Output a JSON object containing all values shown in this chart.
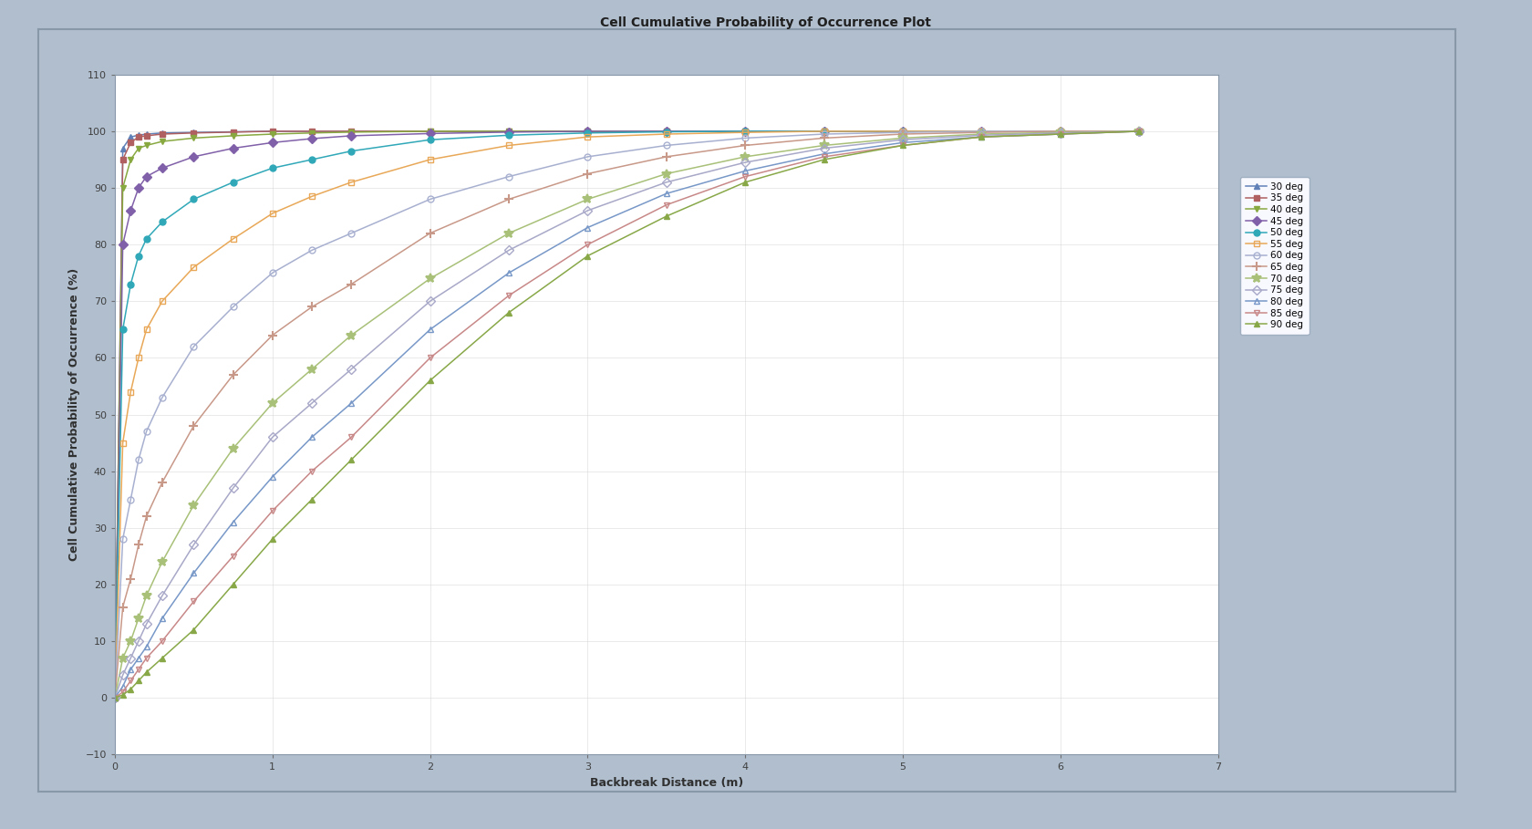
{
  "title": "Cell Cumulative Probability of Occurrence Plot",
  "xlabel": "Backbreak Distance (m)",
  "ylabel": "Cell Cumulative Probability of Occurrence (%)",
  "xlim": [
    0,
    7
  ],
  "ylim": [
    -10,
    110
  ],
  "xticks": [
    0,
    1,
    2,
    3,
    4,
    5,
    6,
    7
  ],
  "yticks": [
    -10,
    0,
    10,
    20,
    30,
    40,
    50,
    60,
    70,
    80,
    90,
    100,
    110
  ],
  "outer_bg": "#b0bece",
  "plot_bg": "#ffffff",
  "title_fontsize": 10,
  "series": [
    {
      "label": "30 deg",
      "color": "#6080b8",
      "marker": "^",
      "fillstyle": "full",
      "x": [
        0,
        0.05,
        0.1,
        0.15,
        0.2,
        0.3,
        0.5,
        0.75,
        1.0,
        1.25,
        1.5,
        2.0,
        2.5,
        3.0,
        3.5,
        4.0,
        4.5,
        5.0,
        5.5,
        6.0,
        6.5
      ],
      "y": [
        0,
        97,
        99,
        99.3,
        99.5,
        99.7,
        99.8,
        99.9,
        100,
        100,
        100,
        100,
        100,
        100,
        100,
        100,
        100,
        100,
        100,
        100,
        100
      ]
    },
    {
      "label": "35 deg",
      "color": "#b06060",
      "marker": "s",
      "fillstyle": "full",
      "x": [
        0,
        0.05,
        0.1,
        0.15,
        0.2,
        0.3,
        0.5,
        0.75,
        1.0,
        1.25,
        1.5,
        2.0,
        2.5,
        3.0,
        3.5,
        4.0,
        4.5,
        5.0,
        5.5,
        6.0,
        6.5
      ],
      "y": [
        0,
        95,
        98,
        99,
        99.2,
        99.5,
        99.7,
        99.85,
        100,
        100,
        100,
        100,
        100,
        100,
        100,
        100,
        100,
        100,
        100,
        100,
        100
      ]
    },
    {
      "label": "40 deg",
      "color": "#88a840",
      "marker": "v",
      "fillstyle": "full",
      "x": [
        0,
        0.05,
        0.1,
        0.15,
        0.2,
        0.3,
        0.5,
        0.75,
        1.0,
        1.25,
        1.5,
        2.0,
        2.5,
        3.0,
        3.5,
        4.0,
        4.5,
        5.0,
        5.5,
        6.0,
        6.5
      ],
      "y": [
        0,
        90,
        95,
        97,
        97.5,
        98.2,
        98.8,
        99.2,
        99.5,
        99.7,
        99.85,
        100,
        100,
        100,
        100,
        100,
        100,
        100,
        100,
        100,
        100
      ]
    },
    {
      "label": "45 deg",
      "color": "#8060a8",
      "marker": "D",
      "fillstyle": "full",
      "x": [
        0,
        0.05,
        0.1,
        0.15,
        0.2,
        0.3,
        0.5,
        0.75,
        1.0,
        1.25,
        1.5,
        2.0,
        2.5,
        3.0,
        3.5,
        4.0,
        4.5,
        5.0,
        5.5,
        6.0,
        6.5
      ],
      "y": [
        0,
        80,
        86,
        90,
        92,
        93.5,
        95.5,
        97,
        98,
        98.7,
        99.2,
        99.6,
        99.85,
        100,
        100,
        100,
        100,
        100,
        100,
        100,
        100
      ]
    },
    {
      "label": "50 deg",
      "color": "#30a8b8",
      "marker": "o",
      "fillstyle": "full",
      "x": [
        0,
        0.05,
        0.1,
        0.15,
        0.2,
        0.3,
        0.5,
        0.75,
        1.0,
        1.25,
        1.5,
        2.0,
        2.5,
        3.0,
        3.5,
        4.0,
        4.5,
        5.0,
        5.5,
        6.0,
        6.5
      ],
      "y": [
        0,
        65,
        73,
        78,
        81,
        84,
        88,
        91,
        93.5,
        95,
        96.5,
        98.5,
        99.3,
        99.7,
        99.9,
        100,
        100,
        100,
        100,
        100,
        100
      ]
    },
    {
      "label": "55 deg",
      "color": "#e8a858",
      "marker": "s",
      "fillstyle": "none",
      "x": [
        0,
        0.05,
        0.1,
        0.15,
        0.2,
        0.3,
        0.5,
        0.75,
        1.0,
        1.25,
        1.5,
        2.0,
        2.5,
        3.0,
        3.5,
        4.0,
        4.5,
        5.0,
        5.5,
        6.0,
        6.5
      ],
      "y": [
        0,
        45,
        54,
        60,
        65,
        70,
        76,
        81,
        85.5,
        88.5,
        91,
        95,
        97.5,
        99,
        99.5,
        99.8,
        100,
        100,
        100,
        100,
        100
      ]
    },
    {
      "label": "60 deg",
      "color": "#a8b0d0",
      "marker": "o",
      "fillstyle": "none",
      "x": [
        0,
        0.05,
        0.1,
        0.15,
        0.2,
        0.3,
        0.5,
        0.75,
        1.0,
        1.25,
        1.5,
        2.0,
        2.5,
        3.0,
        3.5,
        4.0,
        4.5,
        5.0,
        5.5,
        6.0,
        6.5
      ],
      "y": [
        0,
        28,
        35,
        42,
        47,
        53,
        62,
        69,
        75,
        79,
        82,
        88,
        92,
        95.5,
        97.5,
        98.8,
        99.5,
        99.8,
        100,
        100,
        100
      ]
    },
    {
      "label": "65 deg",
      "color": "#c89888",
      "marker": "+",
      "fillstyle": "full",
      "x": [
        0,
        0.05,
        0.1,
        0.15,
        0.2,
        0.3,
        0.5,
        0.75,
        1.0,
        1.25,
        1.5,
        2.0,
        2.5,
        3.0,
        3.5,
        4.0,
        4.5,
        5.0,
        5.5,
        6.0,
        6.5
      ],
      "y": [
        0,
        16,
        21,
        27,
        32,
        38,
        48,
        57,
        64,
        69,
        73,
        82,
        88,
        92.5,
        95.5,
        97.5,
        98.8,
        99.5,
        99.8,
        100,
        100
      ]
    },
    {
      "label": "70 deg",
      "color": "#a8c078",
      "marker": "*",
      "fillstyle": "full",
      "x": [
        0,
        0.05,
        0.1,
        0.15,
        0.2,
        0.3,
        0.5,
        0.75,
        1.0,
        1.25,
        1.5,
        2.0,
        2.5,
        3.0,
        3.5,
        4.0,
        4.5,
        5.0,
        5.5,
        6.0,
        6.5
      ],
      "y": [
        0,
        7,
        10,
        14,
        18,
        24,
        34,
        44,
        52,
        58,
        64,
        74,
        82,
        88,
        92.5,
        95.5,
        97.5,
        98.8,
        99.5,
        99.8,
        100
      ]
    },
    {
      "label": "75 deg",
      "color": "#a8a8c8",
      "marker": "D",
      "fillstyle": "none",
      "x": [
        0,
        0.05,
        0.1,
        0.15,
        0.2,
        0.3,
        0.5,
        0.75,
        1.0,
        1.25,
        1.5,
        2.0,
        2.5,
        3.0,
        3.5,
        4.0,
        4.5,
        5.0,
        5.5,
        6.0,
        6.5
      ],
      "y": [
        0,
        4,
        7,
        10,
        13,
        18,
        27,
        37,
        46,
        52,
        58,
        70,
        79,
        86,
        91,
        94.5,
        97,
        98.5,
        99.3,
        99.7,
        100
      ]
    },
    {
      "label": "80 deg",
      "color": "#7898c8",
      "marker": "^",
      "fillstyle": "none",
      "x": [
        0,
        0.05,
        0.1,
        0.15,
        0.2,
        0.3,
        0.5,
        0.75,
        1.0,
        1.25,
        1.5,
        2.0,
        2.5,
        3.0,
        3.5,
        4.0,
        4.5,
        5.0,
        5.5,
        6.0,
        6.5
      ],
      "y": [
        0,
        2,
        5,
        7,
        9,
        14,
        22,
        31,
        39,
        46,
        52,
        65,
        75,
        83,
        89,
        93,
        96,
        98,
        99,
        99.5,
        100
      ]
    },
    {
      "label": "85 deg",
      "color": "#c88888",
      "marker": "v",
      "fillstyle": "none",
      "x": [
        0,
        0.05,
        0.1,
        0.15,
        0.2,
        0.3,
        0.5,
        0.75,
        1.0,
        1.25,
        1.5,
        2.0,
        2.5,
        3.0,
        3.5,
        4.0,
        4.5,
        5.0,
        5.5,
        6.0,
        6.5
      ],
      "y": [
        0,
        1,
        3,
        5,
        7,
        10,
        17,
        25,
        33,
        40,
        46,
        60,
        71,
        80,
        87,
        92,
        95.5,
        97.5,
        99,
        99.5,
        100
      ]
    },
    {
      "label": "90 deg",
      "color": "#88a848",
      "marker": "^",
      "fillstyle": "full",
      "x": [
        0,
        0.05,
        0.1,
        0.15,
        0.2,
        0.3,
        0.5,
        0.75,
        1.0,
        1.25,
        1.5,
        2.0,
        2.5,
        3.0,
        3.5,
        4.0,
        4.5,
        5.0,
        5.5,
        6.0,
        6.5
      ],
      "y": [
        0,
        0.5,
        1.5,
        3,
        4.5,
        7,
        12,
        20,
        28,
        35,
        42,
        56,
        68,
        78,
        85,
        91,
        95,
        97.5,
        99,
        99.5,
        100
      ]
    }
  ]
}
